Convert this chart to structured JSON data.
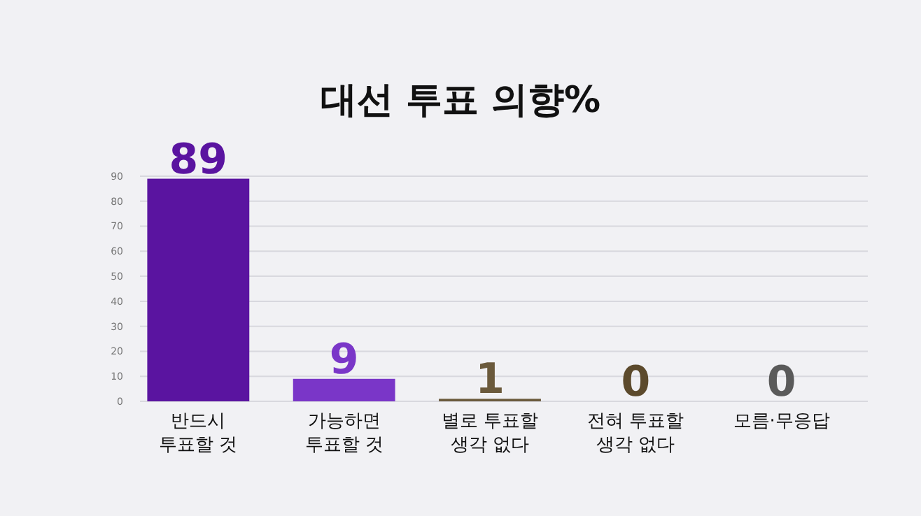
{
  "chart_data": {
    "type": "bar",
    "title": "대선 투표 의향%",
    "categories": [
      "반드시\n투표할 것",
      "가능하면\n투표할 것",
      "별로 투표할\n생각 없다",
      "전혀 투표할\n생각 없다",
      "모름·무응답"
    ],
    "values": [
      89,
      9,
      1,
      0,
      0
    ],
    "colors": [
      "#5a14a0",
      "#7a36c8",
      "#6b5a3c",
      "#5c4a2c",
      "#5a5a5a"
    ],
    "ylim": [
      0,
      90
    ],
    "yticks": [
      0,
      10,
      20,
      30,
      40,
      50,
      60,
      70,
      80,
      90
    ],
    "grid": "y",
    "data_labels": true
  }
}
